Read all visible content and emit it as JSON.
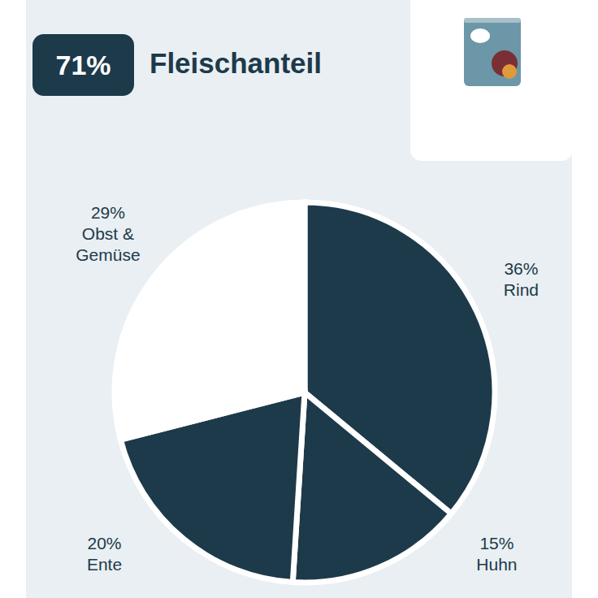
{
  "chart_data": {
    "type": "pie",
    "title": "Fleischanteil",
    "badge": {
      "value": 71,
      "label": "71%"
    },
    "categories": [
      "Rind",
      "Huhn",
      "Ente",
      "Obst & Gemüse"
    ],
    "values": [
      36,
      15,
      20,
      29
    ],
    "value_labels": [
      "36%",
      "15%",
      "20%",
      "29%"
    ],
    "colors": [
      "#1d3a4a",
      "#1d3a4a",
      "#1d3a4a",
      "#ffffff"
    ],
    "data_labels": true,
    "legend": false
  }
}
